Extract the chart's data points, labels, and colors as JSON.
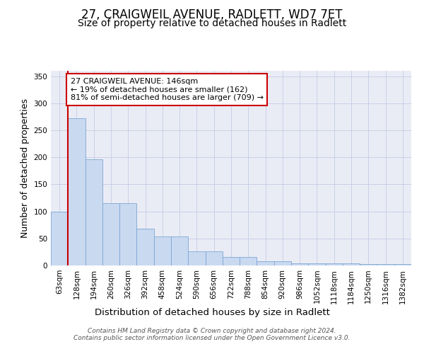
{
  "title_line1": "27, CRAIGWEIL AVENUE, RADLETT, WD7 7ET",
  "title_line2": "Size of property relative to detached houses in Radlett",
  "xlabel": "Distribution of detached houses by size in Radlett",
  "ylabel": "Number of detached properties",
  "bar_categories": [
    "63sqm",
    "128sqm",
    "194sqm",
    "260sqm",
    "326sqm",
    "392sqm",
    "458sqm",
    "524sqm",
    "590sqm",
    "656sqm",
    "722sqm",
    "788sqm",
    "854sqm",
    "920sqm",
    "986sqm",
    "1052sqm",
    "1118sqm",
    "1184sqm",
    "1250sqm",
    "1316sqm",
    "1382sqm"
  ],
  "bar_values": [
    100,
    272,
    196,
    115,
    115,
    68,
    54,
    54,
    26,
    26,
    16,
    16,
    8,
    8,
    4,
    4,
    4,
    4,
    2,
    3,
    3
  ],
  "bar_color": "#c9d9f0",
  "bar_edge_color": "#7ba7d4",
  "annotation_text": "27 CRAIGWEIL AVENUE: 146sqm\n← 19% of detached houses are smaller (162)\n81% of semi-detached houses are larger (709) →",
  "annotation_box_color": "white",
  "annotation_border_color": "#cc0000",
  "red_line_color": "#cc0000",
  "ylim": [
    0,
    360
  ],
  "yticks": [
    0,
    50,
    100,
    150,
    200,
    250,
    300,
    350
  ],
  "grid_color": "#c8d0e8",
  "background_color": "#eaecf5",
  "footer_text": "Contains HM Land Registry data © Crown copyright and database right 2024.\nContains public sector information licensed under the Open Government Licence v3.0.",
  "title_fontsize": 12,
  "subtitle_fontsize": 10,
  "axis_label_fontsize": 9,
  "tick_fontsize": 7.5,
  "annotation_fontsize": 8
}
